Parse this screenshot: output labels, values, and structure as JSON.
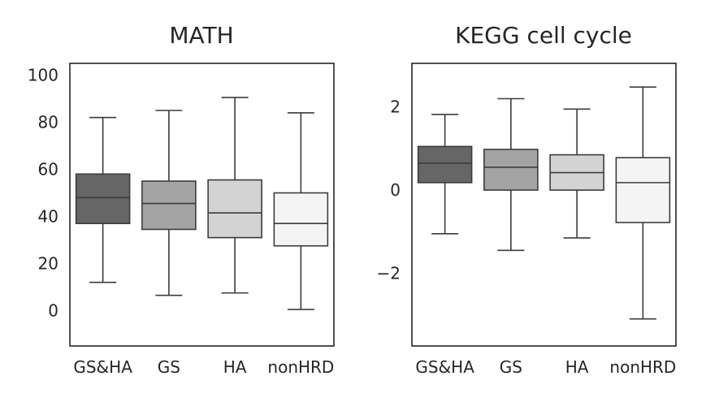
{
  "chart_data": [
    {
      "type": "box",
      "title": "MATH",
      "xlabel": "",
      "ylabel": "",
      "categories": [
        "GS&HA",
        "GS",
        "HA",
        "nonHRD"
      ],
      "ylim": [
        -15,
        105
      ],
      "yticks": [
        0,
        20,
        40,
        60,
        80,
        100
      ],
      "ytick_labels": [
        "0",
        "20",
        "40",
        "60",
        "80",
        "100"
      ],
      "boxes": [
        {
          "category": "GS&HA",
          "whislo": 12,
          "q1": 37,
          "median": 48,
          "q3": 58,
          "whishi": 82,
          "color": "#666666"
        },
        {
          "category": "GS",
          "whislo": 6.5,
          "q1": 34.5,
          "median": 45.5,
          "q3": 55,
          "whishi": 85,
          "color": "#a4a4a4"
        },
        {
          "category": "HA",
          "whislo": 7.5,
          "q1": 31,
          "median": 41.5,
          "q3": 55.5,
          "whishi": 90.5,
          "color": "#d3d3d3"
        },
        {
          "category": "nonHRD",
          "whislo": 0.5,
          "q1": 27.5,
          "median": 37,
          "q3": 50,
          "whishi": 84,
          "color": "#f4f4f4"
        }
      ],
      "grid": false
    },
    {
      "type": "box",
      "title": "KEGG cell cycle",
      "xlabel": "",
      "ylabel": "",
      "categories": [
        "GS&HA",
        "GS",
        "HA",
        "nonHRD"
      ],
      "ylim": [
        -3.75,
        3.05
      ],
      "yticks": [
        2,
        0,
        -2
      ],
      "ytick_labels": [
        "2",
        "0",
        "−2"
      ],
      "boxes": [
        {
          "category": "GS&HA",
          "whislo": -1.05,
          "q1": 0.18,
          "median": 0.65,
          "q3": 1.05,
          "whishi": 1.82,
          "color": "#666666"
        },
        {
          "category": "GS",
          "whislo": -1.45,
          "q1": 0.0,
          "median": 0.55,
          "q3": 0.98,
          "whishi": 2.2,
          "color": "#a4a4a4"
        },
        {
          "category": "HA",
          "whislo": -1.15,
          "q1": 0.0,
          "median": 0.42,
          "q3": 0.85,
          "whishi": 1.95,
          "color": "#d3d3d3"
        },
        {
          "category": "nonHRD",
          "whislo": -3.1,
          "q1": -0.78,
          "median": 0.18,
          "q3": 0.78,
          "whishi": 2.48,
          "color": "#f4f4f4"
        }
      ],
      "grid": false
    }
  ]
}
